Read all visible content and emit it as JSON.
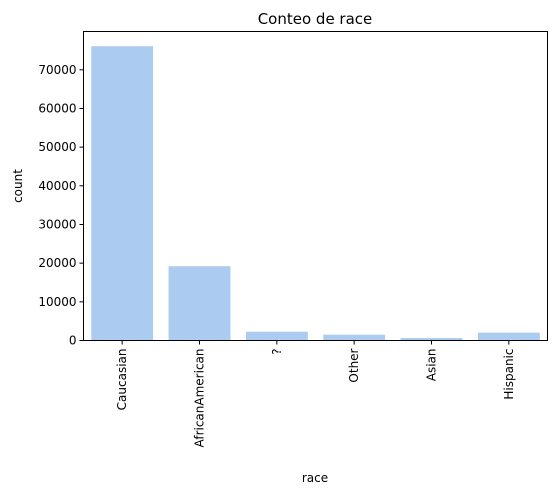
{
  "chart_data": {
    "type": "bar",
    "title": "Conteo de race",
    "xlabel": "race",
    "ylabel": "count",
    "categories": [
      "Caucasian",
      "AfricanAmerican",
      "?",
      "Other",
      "Asian",
      "Hispanic"
    ],
    "values": [
      76099,
      19210,
      2273,
      1506,
      641,
      2037
    ],
    "yticks": [
      0,
      10000,
      20000,
      30000,
      40000,
      50000,
      60000,
      70000
    ],
    "ylim": [
      0,
      79904
    ],
    "bar_color": "#abcbf0",
    "grid": false,
    "legend": "none"
  }
}
